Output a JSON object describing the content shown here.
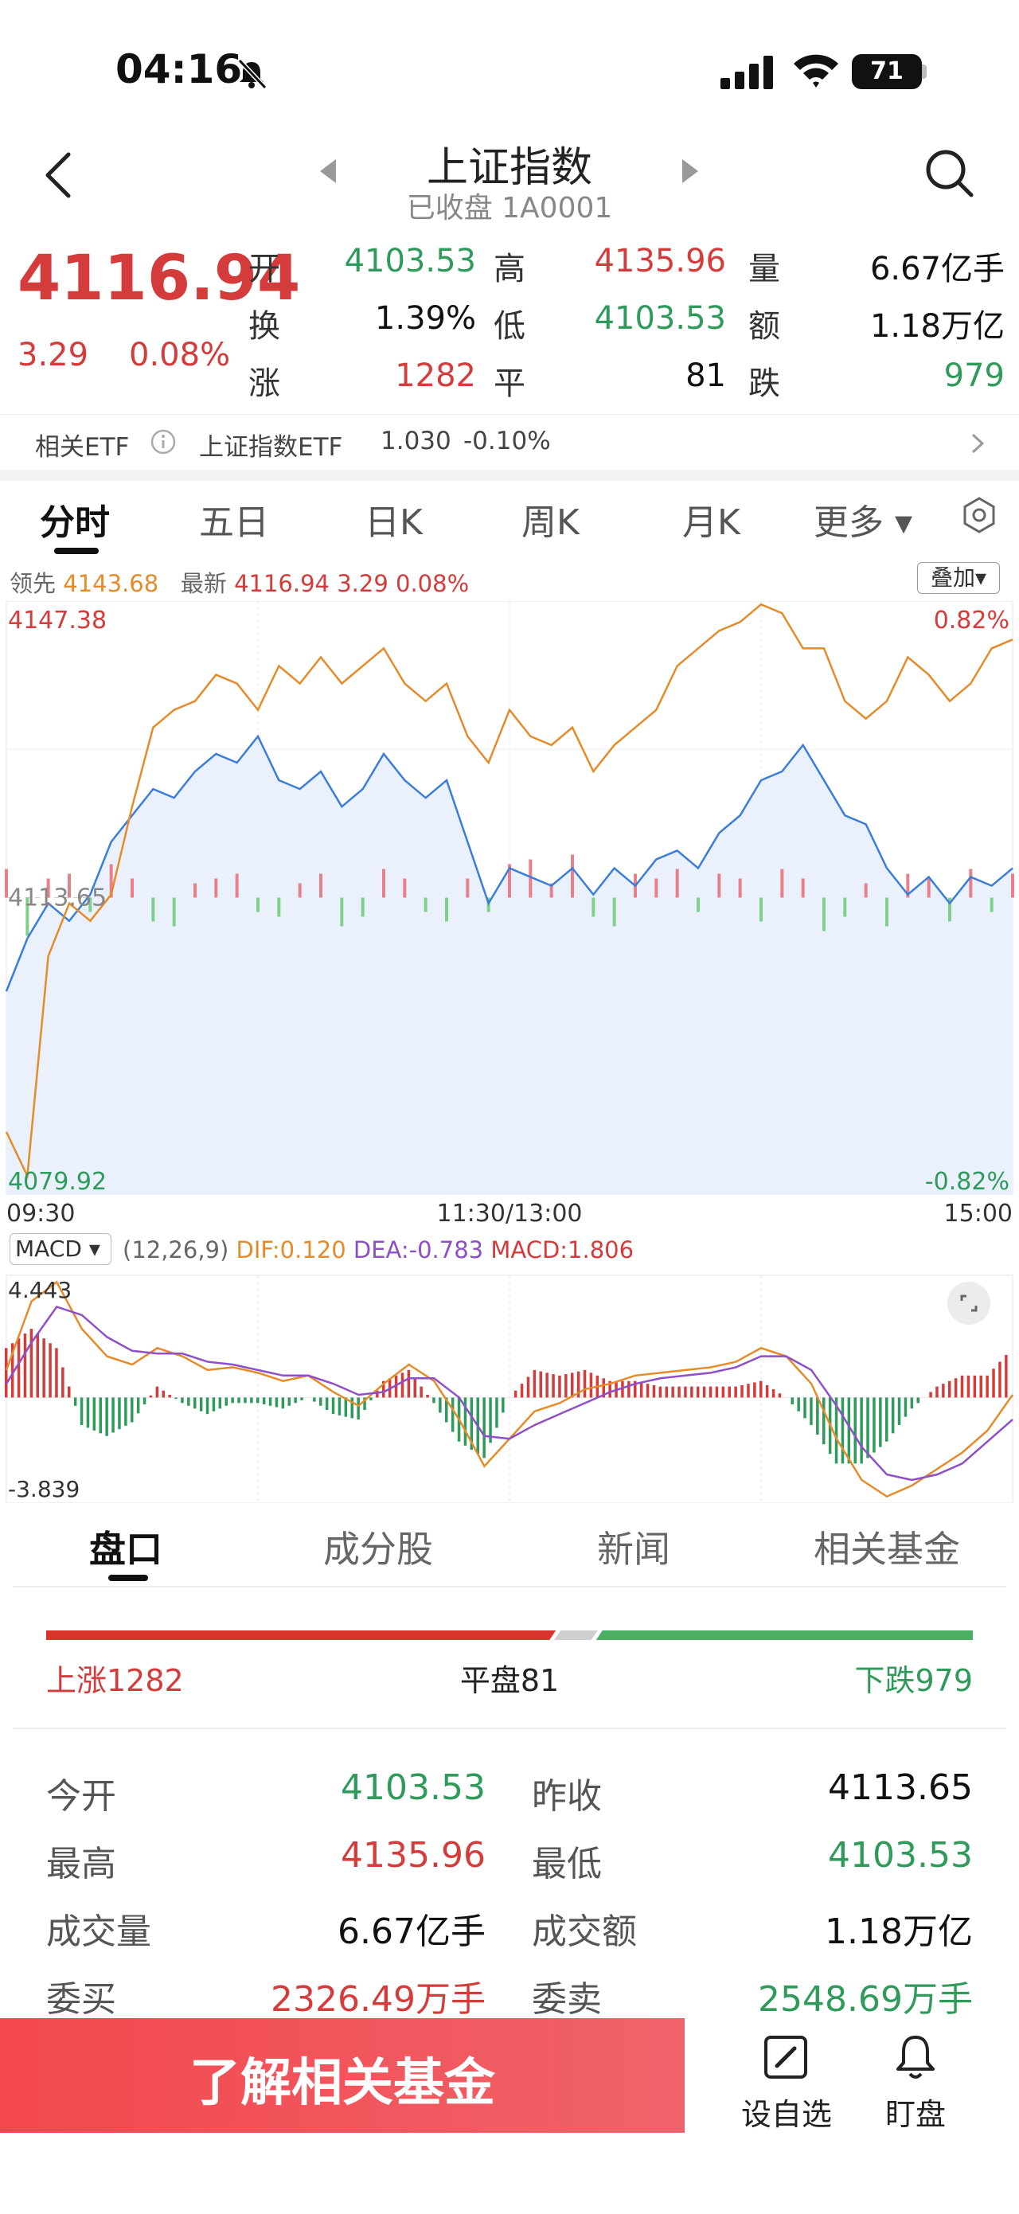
{
  "status_bar": {
    "time": "04:16",
    "battery": "71"
  },
  "header": {
    "title": "上证指数",
    "subtitle": "已收盘 1A0001"
  },
  "quote": {
    "price": "4116.94",
    "change": "3.29",
    "change_pct": "0.08%",
    "rows": [
      [
        {
          "label": "开",
          "value": "4103.53",
          "color": "green"
        },
        {
          "label": "高",
          "value": "4135.96",
          "color": "red"
        },
        {
          "label": "量",
          "value": "6.67亿手",
          "color": "black"
        }
      ],
      [
        {
          "label": "换",
          "value": "1.39%",
          "color": "black"
        },
        {
          "label": "低",
          "value": "4103.53",
          "color": "green"
        },
        {
          "label": "额",
          "value": "1.18万亿",
          "color": "black"
        }
      ],
      [
        {
          "label": "涨",
          "value": "1282",
          "color": "red"
        },
        {
          "label": "平",
          "value": "81",
          "color": "black"
        },
        {
          "label": "跌",
          "value": "979",
          "color": "green"
        }
      ]
    ]
  },
  "etf": {
    "label": "相关ETF",
    "name": "上证指数ETF",
    "price": "1.030",
    "change": "-0.10%"
  },
  "chart_tabs": [
    "分时",
    "五日",
    "日K",
    "周K",
    "月K",
    "更多 ▾"
  ],
  "intraday_legend": {
    "lead_label": "领先",
    "lead_value": "4143.68",
    "last_label": "最新",
    "last_value": "4116.94",
    "last_change": "3.29",
    "last_pct": "0.08%",
    "overlay_button": "叠加▾"
  },
  "chart_data": [
    {
      "type": "line",
      "x": [
        0,
        5,
        10,
        15,
        20,
        25,
        30,
        35,
        40,
        45,
        50,
        55,
        60,
        65,
        70,
        75,
        80,
        85,
        90,
        95,
        100,
        105,
        110,
        115,
        120,
        125,
        130,
        135,
        140,
        145,
        150,
        155,
        160,
        165,
        170,
        175,
        180,
        185,
        190,
        195,
        200,
        205,
        210,
        215,
        220,
        225,
        230,
        235,
        240
      ],
      "series": [
        {
          "name": "最新",
          "color": "#3b7dd8",
          "values": [
            4103,
            4109,
            4113,
            4111,
            4114,
            4120,
            4123,
            4126,
            4125,
            4128,
            4130,
            4129,
            4132,
            4127,
            4126,
            4128,
            4124,
            4126,
            4130,
            4127,
            4125,
            4127,
            4120,
            4113,
            4117,
            4116,
            4115,
            4117,
            4114,
            4117,
            4115,
            4118,
            4119,
            4117,
            4121,
            4123,
            4127,
            4128,
            4131,
            4127,
            4123,
            4122,
            4117,
            4114,
            4116,
            4113,
            4116,
            4115,
            4117
          ]
        },
        {
          "name": "领先",
          "color": "#e58b2a",
          "values": [
            4087,
            4082,
            4107,
            4113,
            4111,
            4114,
            4124,
            4133,
            4135,
            4136,
            4139,
            4138,
            4135,
            4140,
            4138,
            4141,
            4138,
            4140,
            4142,
            4138,
            4136,
            4138,
            4132,
            4129,
            4135,
            4132,
            4131,
            4133,
            4128,
            4131,
            4133,
            4135,
            4140,
            4142,
            4144,
            4145,
            4147,
            4146,
            4142,
            4142,
            4136,
            4134,
            4136,
            4141,
            4139,
            4136,
            4138,
            4142,
            4143
          ]
        }
      ],
      "bars": [
        0.6,
        -0.8,
        0.4,
        0.5,
        -0.3,
        0.7,
        0.4,
        -0.5,
        -0.6,
        0.3,
        0.4,
        0.5,
        -0.3,
        -0.4,
        0.3,
        0.5,
        -0.6,
        -0.4,
        0.6,
        0.4,
        -0.3,
        -0.5,
        0.4,
        -0.3,
        0.7,
        0.8,
        0.3,
        0.9,
        -0.4,
        -0.6,
        0.5,
        0.4,
        0.6,
        -0.3,
        0.5,
        0.4,
        -0.5,
        0.6,
        0.4,
        -0.7,
        -0.4,
        0.3,
        -0.6,
        0.5,
        0.4,
        -0.5,
        0.6,
        -0.3,
        0.5
      ],
      "ylim": [
        4079.92,
        4147.38
      ],
      "ref": 4113.65,
      "y_labels": {
        "top": "4147.38",
        "mid": "4113.65",
        "bottom": "4079.92",
        "top_pct": "0.82%",
        "bottom_pct": "-0.82%"
      },
      "x_labels": [
        "09:30",
        "11:30/13:00",
        "15:00"
      ]
    },
    {
      "type": "bar",
      "title": "MACD",
      "params": "(12,26,9)",
      "dif_label": "DIF:0.120",
      "dea_label": "DEA:-0.783",
      "macd_label": "MACD:1.806",
      "ylim": [
        -3.839,
        4.443
      ],
      "y_labels": {
        "top": "4.443",
        "bottom": "-3.839"
      },
      "dif": [
        1.0,
        3.5,
        4.2,
        2.5,
        1.5,
        1.2,
        1.8,
        1.5,
        1.0,
        1.1,
        0.9,
        0.6,
        0.8,
        0.2,
        -0.3,
        0.5,
        1.2,
        0.6,
        -0.8,
        -2.5,
        -1.5,
        -0.5,
        -0.2,
        0.3,
        0.5,
        0.8,
        0.9,
        1.0,
        1.1,
        1.3,
        1.8,
        1.5,
        0.5,
        -1.5,
        -3.0,
        -3.6,
        -3.2,
        -2.6,
        -2.0,
        -1.2,
        0.1
      ],
      "dea": [
        0.5,
        2.0,
        3.3,
        3.0,
        2.2,
        1.7,
        1.6,
        1.6,
        1.3,
        1.2,
        1.0,
        0.8,
        0.8,
        0.5,
        0.1,
        0.2,
        0.7,
        0.7,
        0.0,
        -1.4,
        -1.5,
        -1.0,
        -0.6,
        -0.2,
        0.2,
        0.5,
        0.7,
        0.8,
        0.9,
        1.1,
        1.5,
        1.5,
        1.0,
        -0.3,
        -1.8,
        -2.8,
        -3.0,
        -2.8,
        -2.4,
        -1.6,
        -0.8
      ],
      "macd": [
        1.8,
        2.5,
        1.8,
        -1.0,
        -1.4,
        -0.9,
        0.4,
        -0.2,
        -0.6,
        -0.2,
        -0.2,
        -0.4,
        0.0,
        -0.6,
        -0.8,
        0.6,
        1.0,
        -0.2,
        -1.6,
        -2.2,
        0.0,
        1.0,
        0.8,
        1.0,
        0.6,
        0.6,
        0.4,
        0.4,
        0.4,
        0.4,
        0.6,
        0.0,
        -1.0,
        -2.4,
        -2.4,
        -1.6,
        -0.4,
        0.4,
        0.8,
        0.8,
        1.8
      ]
    }
  ],
  "bottom_tabs": [
    "盘口",
    "成分股",
    "新闻",
    "相关基金"
  ],
  "breadth": {
    "up": "上涨1282",
    "flat": "平盘81",
    "down": "下跌979",
    "up_ratio": 0.55,
    "flat_ratio": 0.04,
    "down_ratio": 0.41
  },
  "stats": [
    [
      {
        "label": "今开",
        "value": "4103.53",
        "color": "green"
      },
      {
        "label": "昨收",
        "value": "4113.65",
        "color": "black"
      }
    ],
    [
      {
        "label": "最高",
        "value": "4135.96",
        "color": "red"
      },
      {
        "label": "最低",
        "value": "4103.53",
        "color": "green"
      }
    ],
    [
      {
        "label": "成交量",
        "value": "6.67亿手",
        "color": "black"
      },
      {
        "label": "成交额",
        "value": "1.18万亿",
        "color": "black"
      }
    ],
    [
      {
        "label": "委买",
        "value": "2326.49万手",
        "color": "red"
      },
      {
        "label": "委卖",
        "value": "2548.69万手",
        "color": "green"
      }
    ]
  ],
  "bottom_bar": {
    "cta": "了解相关基金",
    "add_watch": "设自选",
    "watch": "盯盘"
  }
}
